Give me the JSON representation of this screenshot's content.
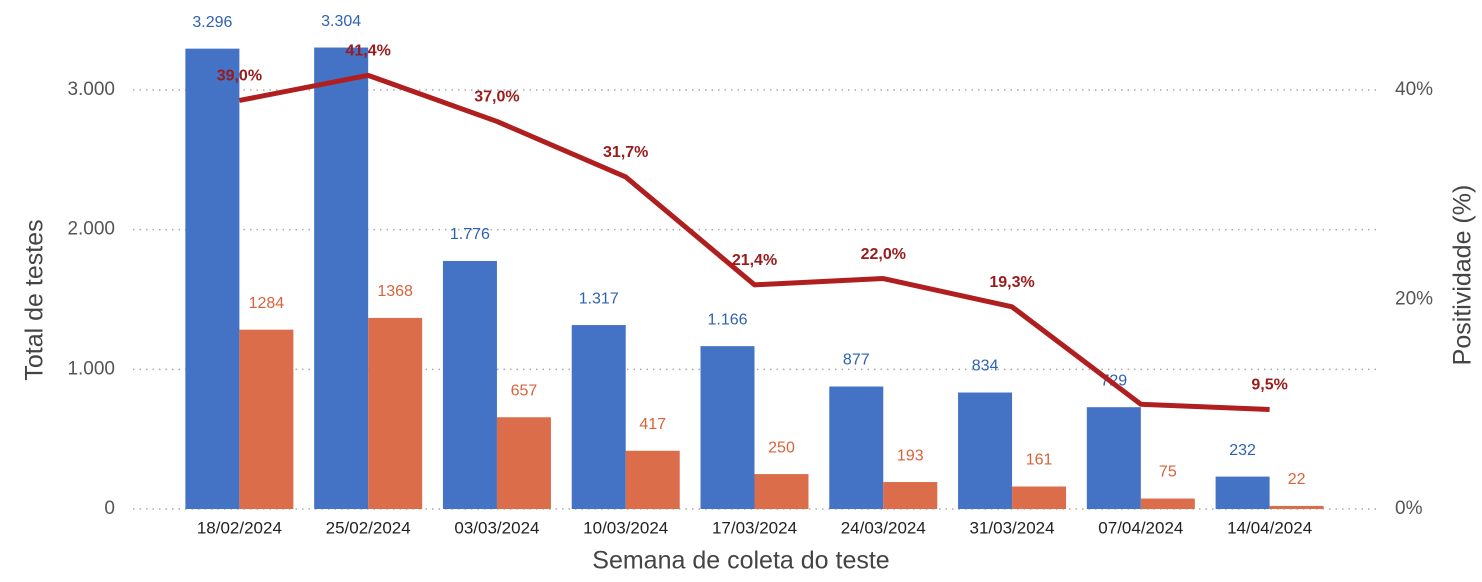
{
  "chart_data": {
    "type": "bar-line",
    "xlabel": "Semana de coleta do teste",
    "ylabel": "Total de testes",
    "y2label": "Positividade (%)",
    "categories": [
      "18/02/2024",
      "25/02/2024",
      "03/03/2024",
      "10/03/2024",
      "17/03/2024",
      "24/03/2024",
      "31/03/2024",
      "07/04/2024",
      "14/04/2024"
    ],
    "series": [
      {
        "type": "bar",
        "color": "#4472c4",
        "label_color": "#2e62b0",
        "values": [
          3296,
          3304,
          1776,
          1317,
          1166,
          877,
          834,
          729,
          232
        ],
        "value_labels": [
          "3.296",
          "3.304",
          "1.776",
          "1.317",
          "1.166",
          "877",
          "834",
          "729",
          "232"
        ]
      },
      {
        "type": "bar",
        "color": "#dc6d4b",
        "label_color": "#d9623b",
        "values": [
          1284,
          1368,
          657,
          417,
          250,
          193,
          161,
          75,
          22
        ]
      },
      {
        "type": "line",
        "axis": "y2",
        "color": "#b01f1f",
        "label_color": "#9a1b1b",
        "values": [
          39.0,
          41.4,
          37.0,
          31.7,
          21.4,
          22.0,
          19.3,
          10.0,
          9.5
        ],
        "value_labels": [
          "39,0%",
          "41,4%",
          "37,0%",
          "31,7%",
          "21,4%",
          "22,0%",
          "19,3%",
          null,
          "9,5%"
        ]
      }
    ],
    "ylim": [
      0,
      3000
    ],
    "yticks": [
      0,
      {
        "value": 1000,
        "label": "1.000"
      },
      {
        "value": 2000,
        "label": "2.000"
      },
      {
        "value": 3000,
        "label": "3.000"
      }
    ],
    "y2lim": [
      0,
      40
    ],
    "y2ticks": [
      {
        "value": 0,
        "label": "0%"
      },
      {
        "value": 20,
        "label": "20%"
      },
      {
        "value": 40,
        "label": "40%"
      }
    ],
    "grid": true
  }
}
